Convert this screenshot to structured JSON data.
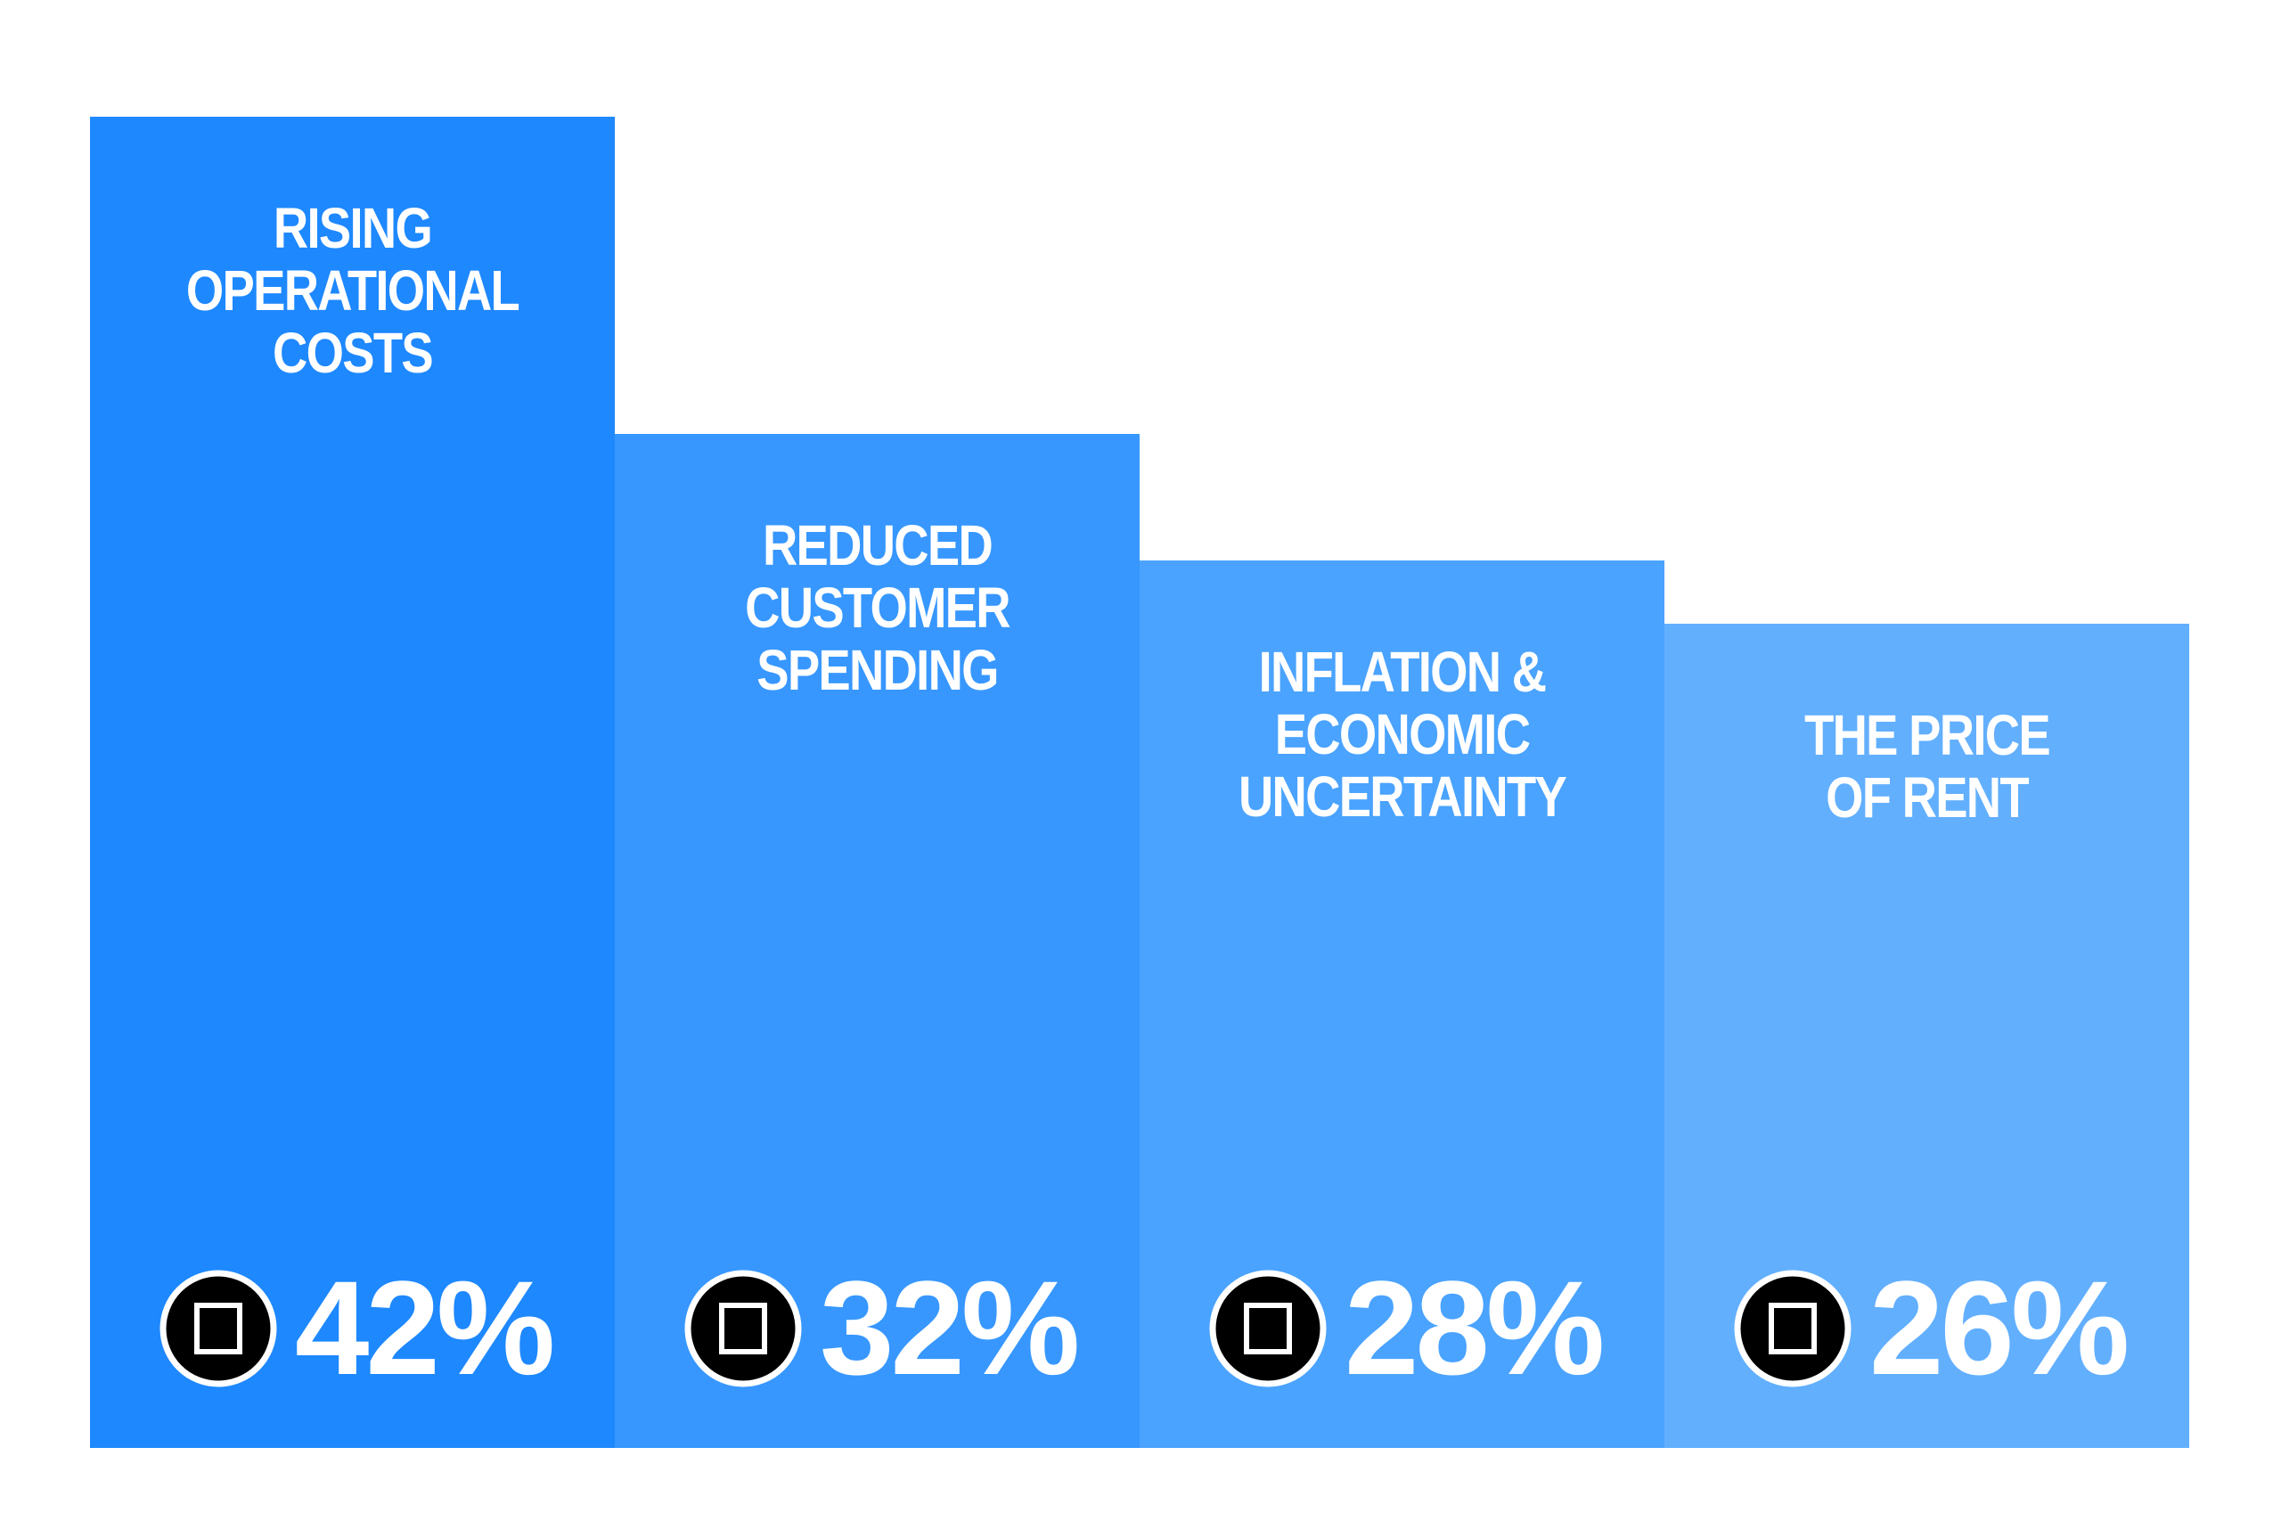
{
  "chart_data": {
    "type": "bar",
    "categories": [
      "RISING\nOPERATIONAL\nCOSTS",
      "REDUCED\nCUSTOMER\nSPENDING",
      "INFLATION &\nECONOMIC\nUNCERTAINTY",
      "THE PRICE\nOF RENT"
    ],
    "values": [
      42,
      32,
      28,
      26
    ],
    "value_labels": [
      "42%",
      "32%",
      "28%",
      "26%"
    ],
    "colors": [
      "#1e88fe",
      "#3797fe",
      "#4aa3fe",
      "#62affe"
    ]
  }
}
